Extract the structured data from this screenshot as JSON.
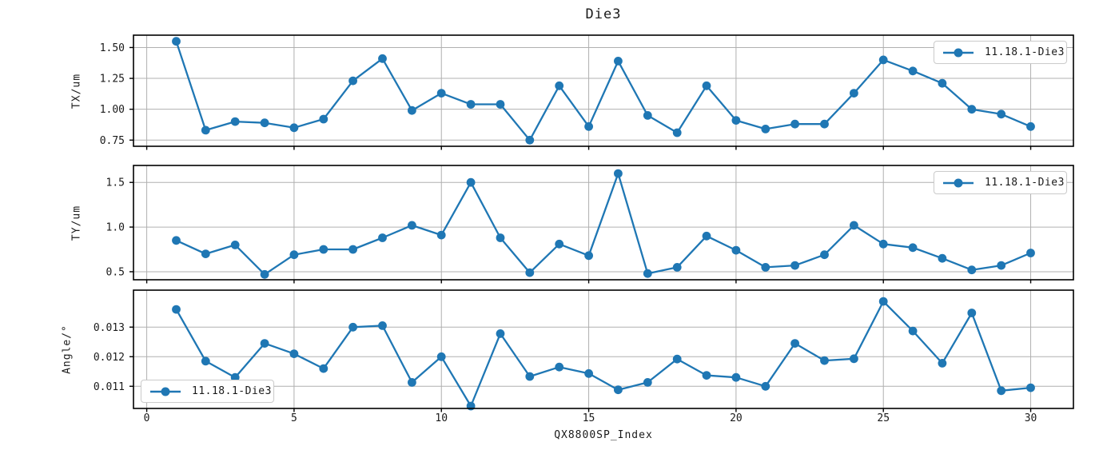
{
  "title": "Die3",
  "xlabel": "QX8800SP_Index",
  "colors": {
    "line": "#1f77b4",
    "grid": "#b0b0b0",
    "spine": "#000000",
    "text": "#1a1a1a",
    "legend_border": "#cccccc"
  },
  "chart_data": {
    "type": "line",
    "title": "Die3",
    "xlabel": "QX8800SP_Index",
    "grid": true,
    "x": [
      1,
      2,
      3,
      4,
      5,
      6,
      7,
      8,
      9,
      10,
      11,
      12,
      13,
      14,
      15,
      16,
      17,
      18,
      19,
      20,
      21,
      22,
      23,
      24,
      25,
      26,
      27,
      28,
      29,
      30
    ],
    "xlim": [
      -0.45,
      31.45
    ],
    "xticks": [
      0,
      5,
      10,
      15,
      20,
      25,
      30
    ],
    "xtick_labels": [
      "0",
      "5",
      "10",
      "15",
      "20",
      "25",
      "30"
    ],
    "legend_label": "11.18.1-Die3",
    "subplots": [
      {
        "ylabel": "TX/um",
        "ylim": [
          0.7,
          1.6
        ],
        "yticks": [
          0.75,
          1.0,
          1.25,
          1.5
        ],
        "ytick_labels": [
          "0.75",
          "1.00",
          "1.25",
          "1.50"
        ],
        "legend_position": "upper right",
        "series": [
          {
            "name": "11.18.1-Die3",
            "values": [
              1.55,
              0.83,
              0.9,
              0.89,
              0.85,
              0.92,
              1.23,
              1.41,
              0.99,
              1.13,
              1.04,
              1.04,
              0.75,
              1.19,
              0.86,
              1.39,
              0.95,
              0.81,
              1.19,
              0.91,
              0.84,
              0.88,
              0.88,
              1.13,
              1.4,
              1.31,
              1.21,
              1.0,
              0.96,
              0.86
            ]
          }
        ]
      },
      {
        "ylabel": "TY/um",
        "ylim": [
          0.41,
          1.69
        ],
        "yticks": [
          0.5,
          1.0,
          1.5
        ],
        "ytick_labels": [
          "0.5",
          "1.0",
          "1.5"
        ],
        "legend_position": "upper right",
        "series": [
          {
            "name": "11.18.1-Die3",
            "values": [
              0.85,
              0.7,
              0.8,
              0.47,
              0.69,
              0.75,
              0.75,
              0.88,
              1.02,
              0.91,
              1.5,
              0.88,
              0.49,
              0.81,
              0.68,
              1.6,
              0.48,
              0.55,
              0.9,
              0.74,
              0.55,
              0.57,
              0.69,
              1.02,
              0.81,
              0.77,
              0.65,
              0.52,
              0.57,
              0.71
            ]
          }
        ]
      },
      {
        "ylabel": "Angle/°",
        "ylim": [
          0.01025,
          0.01425
        ],
        "yticks": [
          0.011,
          0.012,
          0.013
        ],
        "ytick_labels": [
          "0.011",
          "0.012",
          "0.013"
        ],
        "legend_position": "lower left",
        "series": [
          {
            "name": "11.18.1-Die3",
            "values": [
              0.0136,
              0.01185,
              0.0113,
              0.01245,
              0.0121,
              0.0116,
              0.013,
              0.01305,
              0.01113,
              0.012,
              0.01033,
              0.01278,
              0.01133,
              0.01165,
              0.01143,
              0.01088,
              0.01113,
              0.01192,
              0.01137,
              0.0113,
              0.011,
              0.01245,
              0.01187,
              0.01193,
              0.01387,
              0.01287,
              0.01178,
              0.01348,
              0.01085,
              0.01095
            ]
          }
        ]
      }
    ]
  }
}
